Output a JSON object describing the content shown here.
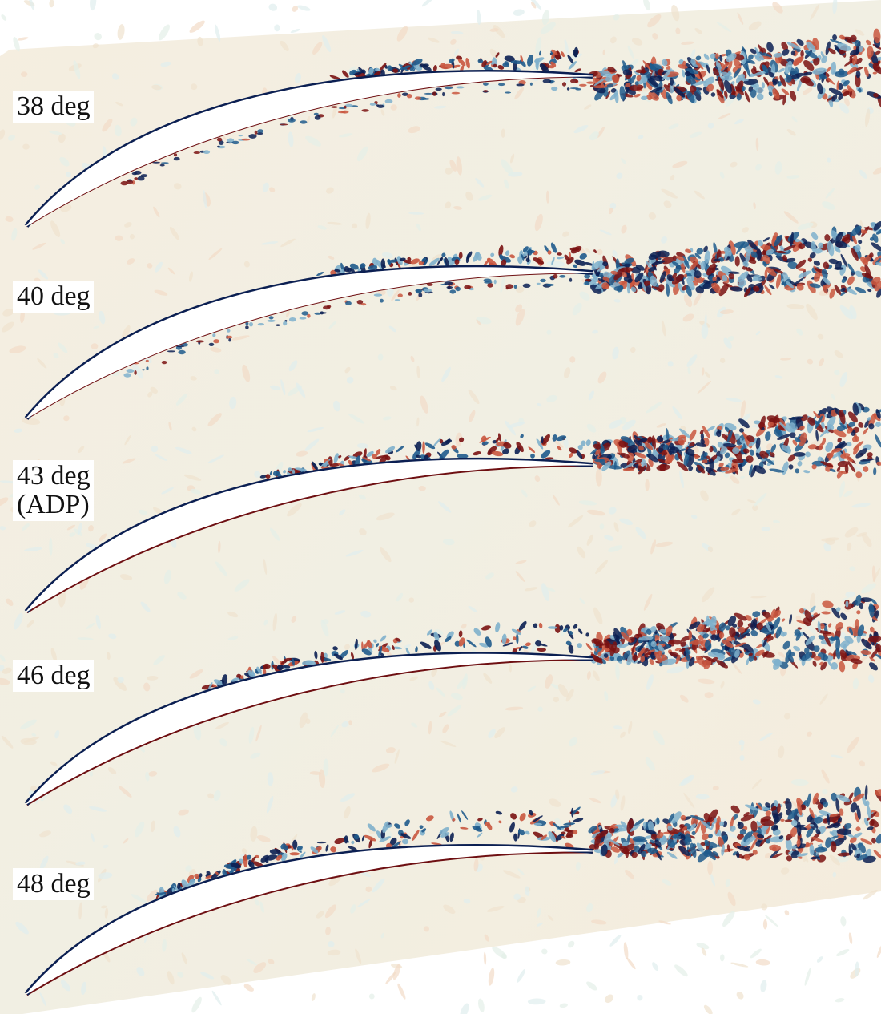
{
  "figure": {
    "background_color": "#f6efe2",
    "suction_color": "#0b1f52",
    "pressure_color": "#6e0f12",
    "vortex_colors": [
      "#0b1f52",
      "#1f5a8c",
      "#7fb0cc",
      "#c9573f",
      "#7a1212"
    ],
    "panels": [
      {
        "label": "38 deg",
        "label_extra": ""
      },
      {
        "label": "40 deg",
        "label_extra": ""
      },
      {
        "label": "43 deg",
        "label_extra": "(ADP)"
      },
      {
        "label": "46 deg",
        "label_extra": ""
      },
      {
        "label": "48 deg",
        "label_extra": ""
      }
    ]
  }
}
